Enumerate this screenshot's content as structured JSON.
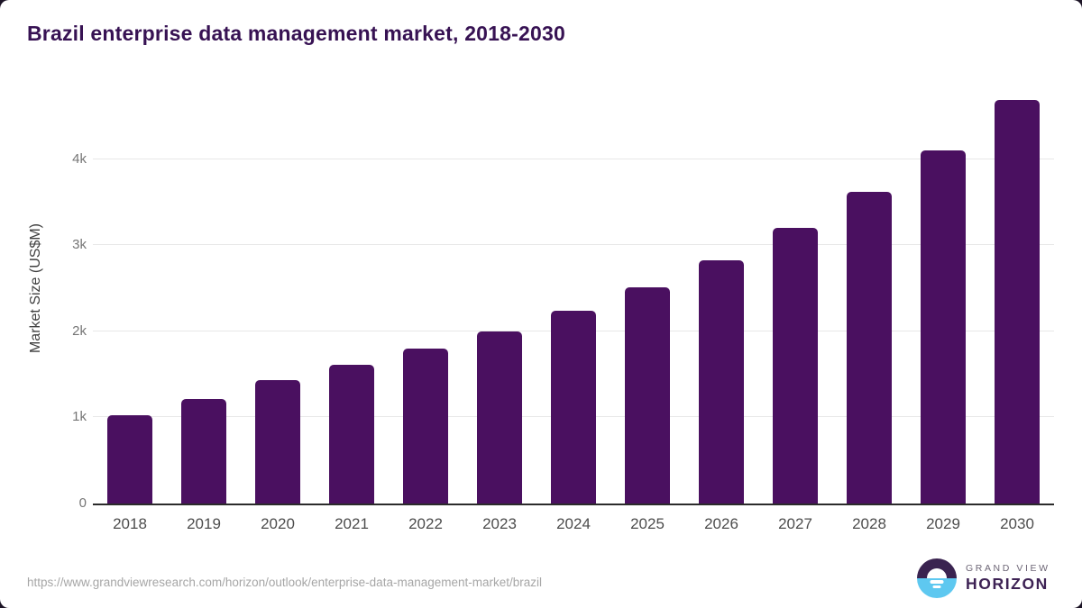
{
  "title": "Brazil enterprise data management market, 2018-2030",
  "chart_data": {
    "type": "bar",
    "title": "Brazil enterprise data management market, 2018-2030",
    "categories": [
      "2018",
      "2019",
      "2020",
      "2021",
      "2022",
      "2023",
      "2024",
      "2025",
      "2026",
      "2027",
      "2028",
      "2029",
      "2030"
    ],
    "values": [
      1020,
      1215,
      1435,
      1610,
      1795,
      2000,
      2240,
      2515,
      2825,
      3195,
      3615,
      4100,
      4685
    ],
    "xlabel": "",
    "ylabel": "Market Size (US$M)",
    "ylim": [
      0,
      4800
    ],
    "yticks": [
      {
        "value": 0,
        "label": "0"
      },
      {
        "value": 1000,
        "label": "1k"
      },
      {
        "value": 2000,
        "label": "2k"
      },
      {
        "value": 3000,
        "label": "3k"
      },
      {
        "value": 4000,
        "label": "4k"
      }
    ],
    "grid": true,
    "legend": "none",
    "bar_color": "#4a1060"
  },
  "colors": {
    "title_text": "#371253",
    "bar": "#4a1060",
    "gridline": "#e8e8e8",
    "axis_line": "#2b2b2b",
    "logo_purple": "#3a2350",
    "logo_blue": "#5ec8f0"
  },
  "footer": {
    "source_url": "https://www.grandviewresearch.com/horizon/outlook/enterprise-data-management-market/brazil",
    "logo": {
      "line1": "GRAND VIEW",
      "line2": "HORIZON"
    }
  }
}
